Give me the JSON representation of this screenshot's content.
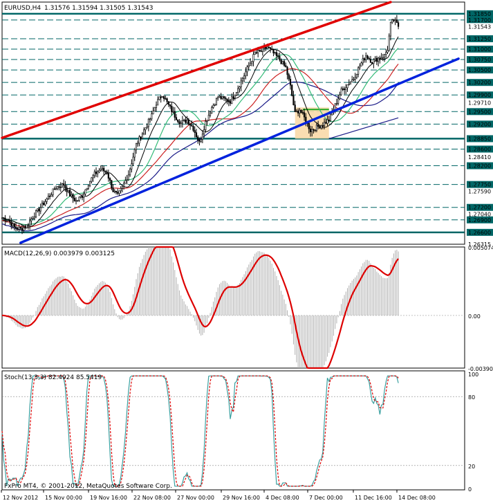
{
  "header": {
    "symbol": "EURUSD,H4",
    "ohlc": "1.31576 1.31594 1.31505 1.31543"
  },
  "price_axis": {
    "ticks": [
      "1.31850",
      "1.31700",
      "1.31543",
      "1.31250",
      "1.31000",
      "1.30750",
      "1.30500",
      "1.30200",
      "1.29900",
      "1.29710",
      "1.29500",
      "1.29200",
      "1.28850",
      "1.28600",
      "1.28410",
      "1.28200",
      "1.27750",
      "1.27590",
      "1.27200",
      "1.27040",
      "1.26900",
      "1.26600",
      "1.26315"
    ],
    "highlighted": [
      "1.31850",
      "1.31700",
      "1.31250",
      "1.31000",
      "1.30750",
      "1.30500",
      "1.30200",
      "1.29900",
      "1.29500",
      "1.29200",
      "1.28850",
      "1.28600",
      "1.28200",
      "1.27750",
      "1.27200",
      "1.26900",
      "1.26600"
    ],
    "current": "1.31543"
  },
  "macd": {
    "label": "MACD(12,26,9) 0.003979 0.003125",
    "ticks": [
      "0.005074",
      "0.00",
      "-0.003900"
    ]
  },
  "stoch": {
    "label": "Stoch(13,3,3) 82.4924 85.5419",
    "ticks": [
      "100",
      "80",
      "20",
      "0"
    ]
  },
  "time_axis": {
    "labels": [
      "12 Nov 2012",
      "15 Nov 00:00",
      "19 Nov 16:00",
      "22 Nov 08:00",
      "27 Nov 00:00",
      "29 Nov 16:00",
      "4 Dec 08:00",
      "7 Dec 00:00",
      "11 Dec 16:00",
      "14 Dec 08:00"
    ]
  },
  "copyright": "FxPro MT4, © 2001-2012, MetaQuotes Software Corp.",
  "colors": {
    "candle": "#000000",
    "resistance_line": "#e00000",
    "support_line": "#0022dd",
    "horizontal_level": "#006666",
    "ma_black": "#000000",
    "ma_green": "#33bb77",
    "ma_red": "#cc2222",
    "ma_navy": "#1a1a88",
    "macd_signal": "#dd0000",
    "macd_hist": "#b0b0b0",
    "stoch_main": "#3aa0a0",
    "stoch_signal": "#dd0000",
    "highlight_box": "#f9d9a8"
  },
  "chart_data": {
    "type": "candlestick",
    "symbol": "EURUSD",
    "timeframe": "H4",
    "y_range": [
      1.26315,
      1.3213
    ],
    "close_path": [
      [
        0,
        1.2695
      ],
      [
        4,
        1.269
      ],
      [
        8,
        1.2672
      ],
      [
        12,
        1.2668
      ],
      [
        16,
        1.2676
      ],
      [
        20,
        1.2698
      ],
      [
        25,
        1.272
      ],
      [
        30,
        1.2745
      ],
      [
        35,
        1.2768
      ],
      [
        40,
        1.2775
      ],
      [
        44,
        1.275
      ],
      [
        48,
        1.2735
      ],
      [
        52,
        1.2748
      ],
      [
        56,
        1.2778
      ],
      [
        60,
        1.28
      ],
      [
        64,
        1.2812
      ],
      [
        68,
        1.2804
      ],
      [
        72,
        1.276
      ],
      [
        75,
        1.2748
      ],
      [
        78,
        1.2768
      ],
      [
        82,
        1.28
      ],
      [
        87,
        1.287
      ],
      [
        92,
        1.2905
      ],
      [
        97,
        1.294
      ],
      [
        100,
        1.297
      ],
      [
        104,
        1.2992
      ],
      [
        108,
        1.2965
      ],
      [
        112,
        1.294
      ],
      [
        116,
        1.2922
      ],
      [
        120,
        1.293
      ],
      [
        124,
        1.291
      ],
      [
        128,
        1.2875
      ],
      [
        132,
        1.2925
      ],
      [
        136,
        1.296
      ],
      [
        140,
        1.2985
      ],
      [
        144,
        1.298
      ],
      [
        148,
        1.2975
      ],
      [
        152,
        1.3
      ],
      [
        156,
        1.303
      ],
      [
        160,
        1.306
      ],
      [
        164,
        1.309
      ],
      [
        168,
        1.3095
      ],
      [
        172,
        1.3105
      ],
      [
        176,
        1.309
      ],
      [
        180,
        1.3075
      ],
      [
        184,
        1.3055
      ],
      [
        187,
        1.301
      ],
      [
        190,
        1.2945
      ],
      [
        193,
        1.2955
      ],
      [
        196,
        1.2935
      ],
      [
        200,
        1.2905
      ],
      [
        204,
        1.2912
      ],
      [
        208,
        1.292
      ],
      [
        212,
        1.293
      ],
      [
        216,
        1.2965
      ],
      [
        220,
        1.3
      ],
      [
        224,
        1.3015
      ],
      [
        228,
        1.303
      ],
      [
        232,
        1.306
      ],
      [
        236,
        1.3085
      ],
      [
        240,
        1.307
      ],
      [
        244,
        1.3078
      ],
      [
        248,
        1.3085
      ],
      [
        250,
        1.31
      ],
      [
        252,
        1.316
      ],
      [
        254,
        1.317
      ],
      [
        256,
        1.316
      ],
      [
        257,
        1.3154
      ]
    ],
    "trendlines": [
      {
        "name": "resistance",
        "color": "#e00000",
        "p1": [
          0,
          1.2887
        ],
        "p2": [
          252,
          1.3213
        ]
      },
      {
        "name": "support",
        "color": "#0022dd",
        "p1": [
          12,
          1.2635
        ],
        "p2": [
          296,
          1.3077
        ]
      }
    ],
    "horizontal_levels": [
      1.3185,
      1.317,
      1.3125,
      1.31,
      1.3075,
      1.305,
      1.302,
      1.299,
      1.295,
      1.292,
      1.2885,
      1.286,
      1.282,
      1.2775,
      1.272,
      1.269,
      1.266
    ],
    "macd": {
      "range": [
        -0.0039,
        0.005074
      ],
      "last_main": 0.003979,
      "last_signal": 0.003125
    },
    "stochastic": {
      "range": [
        0,
        100
      ],
      "levels": [
        20,
        80
      ],
      "last_main": 82.4924,
      "last_signal": 85.5419
    },
    "time_labels": [
      "12 Nov 2012",
      "15 Nov 00:00",
      "19 Nov 16:00",
      "22 Nov 08:00",
      "27 Nov 00:00",
      "29 Nov 16:00",
      "4 Dec 08:00",
      "7 Dec 00:00",
      "11 Dec 16:00",
      "14 Dec 08:00"
    ]
  }
}
